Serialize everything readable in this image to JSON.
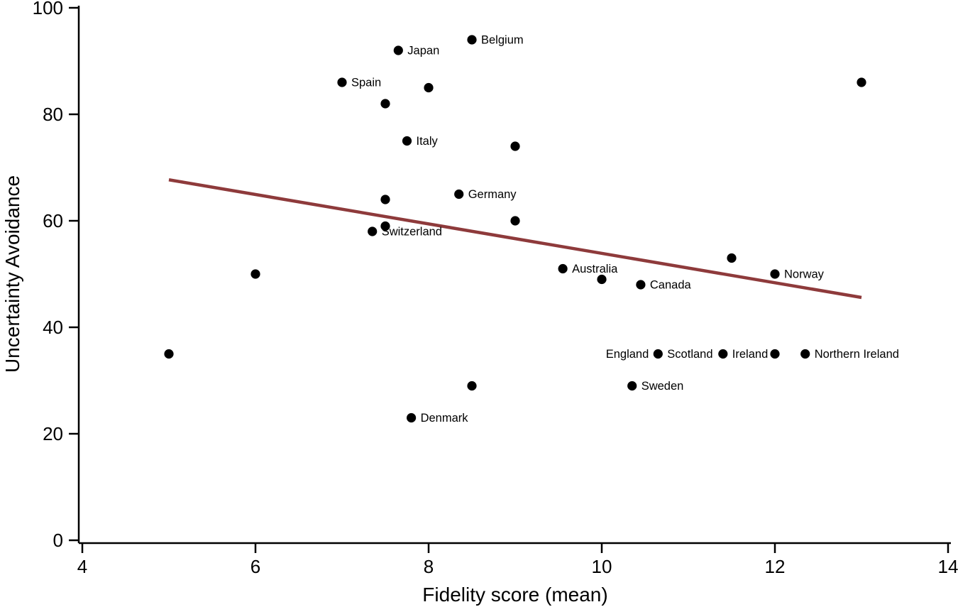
{
  "figure": {
    "background_color": "#ffffff",
    "point_color": "#000000",
    "axis_color": "#000000"
  },
  "chart_data": {
    "type": "scatter",
    "title": "",
    "xlabel": "Fidelity score (mean)",
    "ylabel": "Uncertainty Avoidance",
    "xlim": [
      4,
      14
    ],
    "ylim": [
      0,
      100
    ],
    "x_ticks": [
      4,
      6,
      8,
      10,
      12,
      14
    ],
    "y_ticks": [
      0,
      20,
      40,
      60,
      80,
      100
    ],
    "grid": false,
    "legend": false,
    "fit_line": {
      "x_start": 5,
      "y_start": 67.7,
      "x_end": 13,
      "y_end": 45.6,
      "color": "#8e3a3b"
    },
    "points": [
      {
        "x": 8.5,
        "y": 94,
        "label_right": "Belgium"
      },
      {
        "x": 7.65,
        "y": 92,
        "label_right": "Japan"
      },
      {
        "x": 7.0,
        "y": 86,
        "label_right": "Spain"
      },
      {
        "x": 8.0,
        "y": 85
      },
      {
        "x": 7.5,
        "y": 82
      },
      {
        "x": 7.75,
        "y": 75,
        "label_right": "Italy"
      },
      {
        "x": 9.0,
        "y": 74
      },
      {
        "x": 8.35,
        "y": 65,
        "label_right": "Germany"
      },
      {
        "x": 7.5,
        "y": 64
      },
      {
        "x": 9.0,
        "y": 60
      },
      {
        "x": 7.5,
        "y": 59
      },
      {
        "x": 7.35,
        "y": 58,
        "label_right": "Switzerland"
      },
      {
        "x": 13.0,
        "y": 86
      },
      {
        "x": 6.0,
        "y": 50
      },
      {
        "x": 11.5,
        "y": 53
      },
      {
        "x": 9.55,
        "y": 51,
        "label_right": "Australia"
      },
      {
        "x": 10.0,
        "y": 49
      },
      {
        "x": 12.0,
        "y": 50,
        "label_right": "Norway"
      },
      {
        "x": 10.45,
        "y": 48,
        "label_right": "Canada"
      },
      {
        "x": 5.0,
        "y": 35
      },
      {
        "x": 10.65,
        "y": 35,
        "label_left": "England",
        "label_right": "Scotland"
      },
      {
        "x": 11.4,
        "y": 35,
        "label_right": "Ireland"
      },
      {
        "x": 12.0,
        "y": 35
      },
      {
        "x": 12.35,
        "y": 35,
        "label_right": "Northern Ireland"
      },
      {
        "x": 10.35,
        "y": 29,
        "label_right": "Sweden"
      },
      {
        "x": 8.5,
        "y": 29
      },
      {
        "x": 7.8,
        "y": 23,
        "label_right": "Denmark"
      }
    ]
  }
}
